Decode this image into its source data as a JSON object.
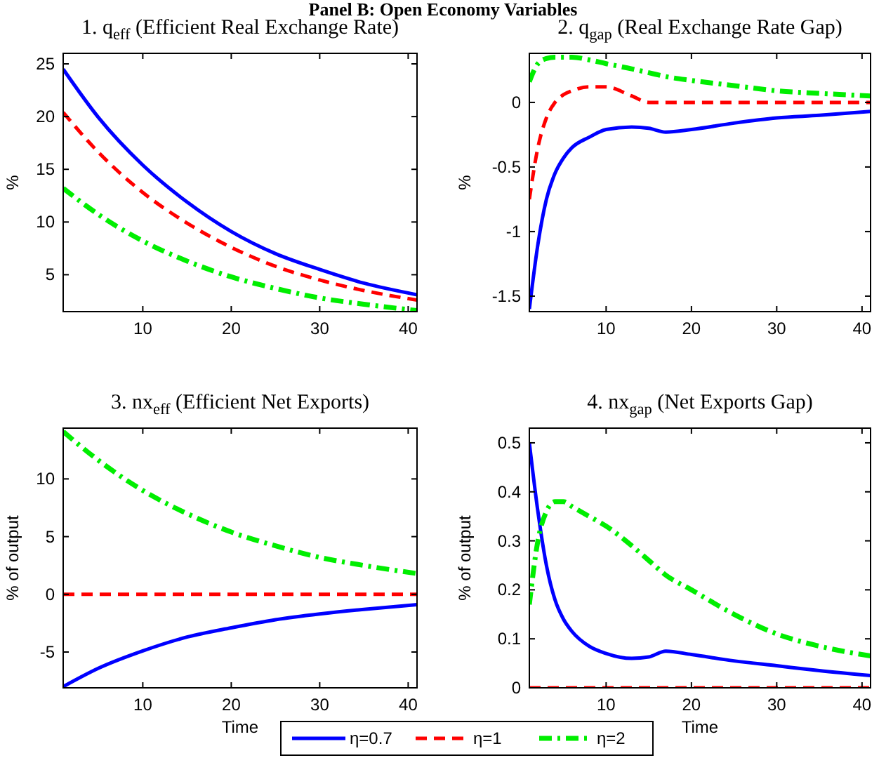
{
  "chart_data": [
    {
      "type": "line",
      "title": "1. q$_{eff}$ (Efficient Real Exchange Rate)",
      "annotations": [
        "Panel B: Open Economy Variables"
      ],
      "ylabel": "%",
      "xlim": [
        1,
        41
      ],
      "xticks": [
        10,
        20,
        30,
        40
      ],
      "ylim": [
        1.5,
        26
      ],
      "yticks": [
        5,
        10,
        15,
        20,
        25
      ],
      "grid": false,
      "legend": false,
      "series": [
        {
          "color": "#0000ff",
          "line_style": "solid",
          "x": [
            1,
            5,
            10,
            15,
            20,
            25,
            30,
            35,
            41
          ],
          "values": [
            24.5,
            19.9,
            15.4,
            11.9,
            9.1,
            7.0,
            5.5,
            4.2,
            3.1
          ]
        },
        {
          "color": "#ff0000",
          "line_style": "dashed",
          "x": [
            1,
            5,
            10,
            15,
            20,
            25,
            30,
            35,
            41
          ],
          "values": [
            20.4,
            16.6,
            12.8,
            9.9,
            7.6,
            5.8,
            4.5,
            3.5,
            2.6
          ]
        },
        {
          "color": "#00ee00",
          "line_style": "dashdot",
          "x": [
            1,
            5,
            10,
            15,
            20,
            25,
            30,
            35,
            41
          ],
          "values": [
            13.2,
            10.7,
            8.2,
            6.3,
            4.8,
            3.7,
            2.8,
            2.2,
            1.6
          ]
        }
      ]
    },
    {
      "type": "line",
      "title": "2. q$_{gap}$ (Real Exchange Rate Gap)",
      "ylabel": "%",
      "xlim": [
        1,
        41
      ],
      "xticks": [
        10,
        20,
        30,
        40
      ],
      "ylim": [
        -1.62,
        0.38
      ],
      "yticks": [
        {
          "value": -1.5,
          "label": "-1.5"
        },
        {
          "value": -1,
          "label": "-1"
        },
        {
          "value": -0.5,
          "label": "-0.5"
        },
        0
      ],
      "grid": false,
      "legend": false,
      "series": [
        {
          "color": "#0000ff",
          "line_style": "solid",
          "x": [
            1,
            2,
            3,
            4,
            5,
            6,
            8,
            10,
            13,
            15,
            17,
            20,
            25,
            30,
            35,
            41
          ],
          "values": [
            -1.6,
            -1.1,
            -0.75,
            -0.55,
            -0.43,
            -0.35,
            -0.27,
            -0.21,
            -0.19,
            -0.2,
            -0.23,
            -0.21,
            -0.16,
            -0.12,
            -0.1,
            -0.07
          ]
        },
        {
          "color": "#ff0000",
          "line_style": "dashed",
          "x": [
            1,
            2,
            3,
            4,
            5,
            6,
            8,
            10,
            13,
            15,
            17,
            20,
            25,
            30,
            35,
            41
          ],
          "values": [
            -0.75,
            -0.35,
            -0.12,
            0.0,
            0.06,
            0.09,
            0.12,
            0.12,
            0.05,
            0.0,
            0.0,
            0,
            0,
            0,
            0,
            0
          ]
        },
        {
          "color": "#00ee00",
          "line_style": "dashdot",
          "x": [
            1,
            2,
            3,
            4,
            5,
            6,
            8,
            10,
            13,
            15,
            17,
            20,
            25,
            30,
            35,
            41
          ],
          "values": [
            0.16,
            0.3,
            0.34,
            0.35,
            0.35,
            0.35,
            0.33,
            0.3,
            0.26,
            0.23,
            0.2,
            0.17,
            0.13,
            0.09,
            0.07,
            0.05
          ]
        }
      ]
    },
    {
      "type": "line",
      "title": "3. nx$_{eff}$ (Efficient Net Exports)",
      "xlabel": "Time",
      "ylabel": "% of output",
      "xlim": [
        1,
        41
      ],
      "xticks": [
        10,
        20,
        30,
        40
      ],
      "ylim": [
        -8.1,
        14.4
      ],
      "yticks": [
        -5,
        0,
        5,
        10
      ],
      "grid": false,
      "legend": "bottom",
      "series": [
        {
          "name": "η=0.7",
          "color": "#0000ff",
          "line_style": "solid",
          "x": [
            1,
            5,
            10,
            15,
            20,
            25,
            30,
            35,
            41
          ],
          "values": [
            -8,
            -6.4,
            -4.9,
            -3.7,
            -2.9,
            -2.2,
            -1.7,
            -1.3,
            -0.9
          ]
        },
        {
          "name": "η=1",
          "color": "#ff0000",
          "line_style": "dashed",
          "x": [
            1,
            41
          ],
          "values": [
            0,
            0
          ]
        },
        {
          "name": "η=2",
          "color": "#00ee00",
          "line_style": "dashdot",
          "x": [
            1,
            5,
            10,
            15,
            20,
            25,
            30,
            35,
            41
          ],
          "values": [
            14.1,
            11.6,
            9.0,
            7.0,
            5.4,
            4.2,
            3.2,
            2.5,
            1.8
          ]
        }
      ]
    },
    {
      "type": "line",
      "title": "4. nx$_{gap}$ (Net Exports Gap)",
      "xlabel": "Time",
      "ylabel": "% of output",
      "xlim": [
        1,
        41
      ],
      "xticks": [
        10,
        20,
        30,
        40
      ],
      "ylim": [
        0,
        0.53
      ],
      "yticks": [
        0,
        0.1,
        0.2,
        0.3,
        0.4,
        0.5
      ],
      "grid": false,
      "legend": false,
      "series": [
        {
          "color": "#0000ff",
          "line_style": "solid",
          "x": [
            1,
            2,
            3,
            4,
            5,
            6,
            8,
            10,
            13,
            15,
            17,
            20,
            25,
            30,
            35,
            41
          ],
          "values": [
            0.5,
            0.36,
            0.25,
            0.18,
            0.14,
            0.115,
            0.085,
            0.07,
            0.06,
            0.063,
            0.075,
            0.068,
            0.055,
            0.045,
            0.035,
            0.025
          ]
        },
        {
          "color": "#ff0000",
          "line_style": "dashed",
          "x": [
            1,
            41
          ],
          "values": [
            0,
            0
          ]
        },
        {
          "color": "#00ee00",
          "line_style": "dashdot",
          "x": [
            1,
            2,
            3,
            4,
            5,
            6,
            8,
            10,
            13,
            15,
            17,
            20,
            25,
            30,
            35,
            41
          ],
          "values": [
            0.17,
            0.3,
            0.36,
            0.38,
            0.38,
            0.37,
            0.35,
            0.33,
            0.29,
            0.26,
            0.23,
            0.2,
            0.15,
            0.11,
            0.085,
            0.065
          ]
        }
      ]
    }
  ]
}
